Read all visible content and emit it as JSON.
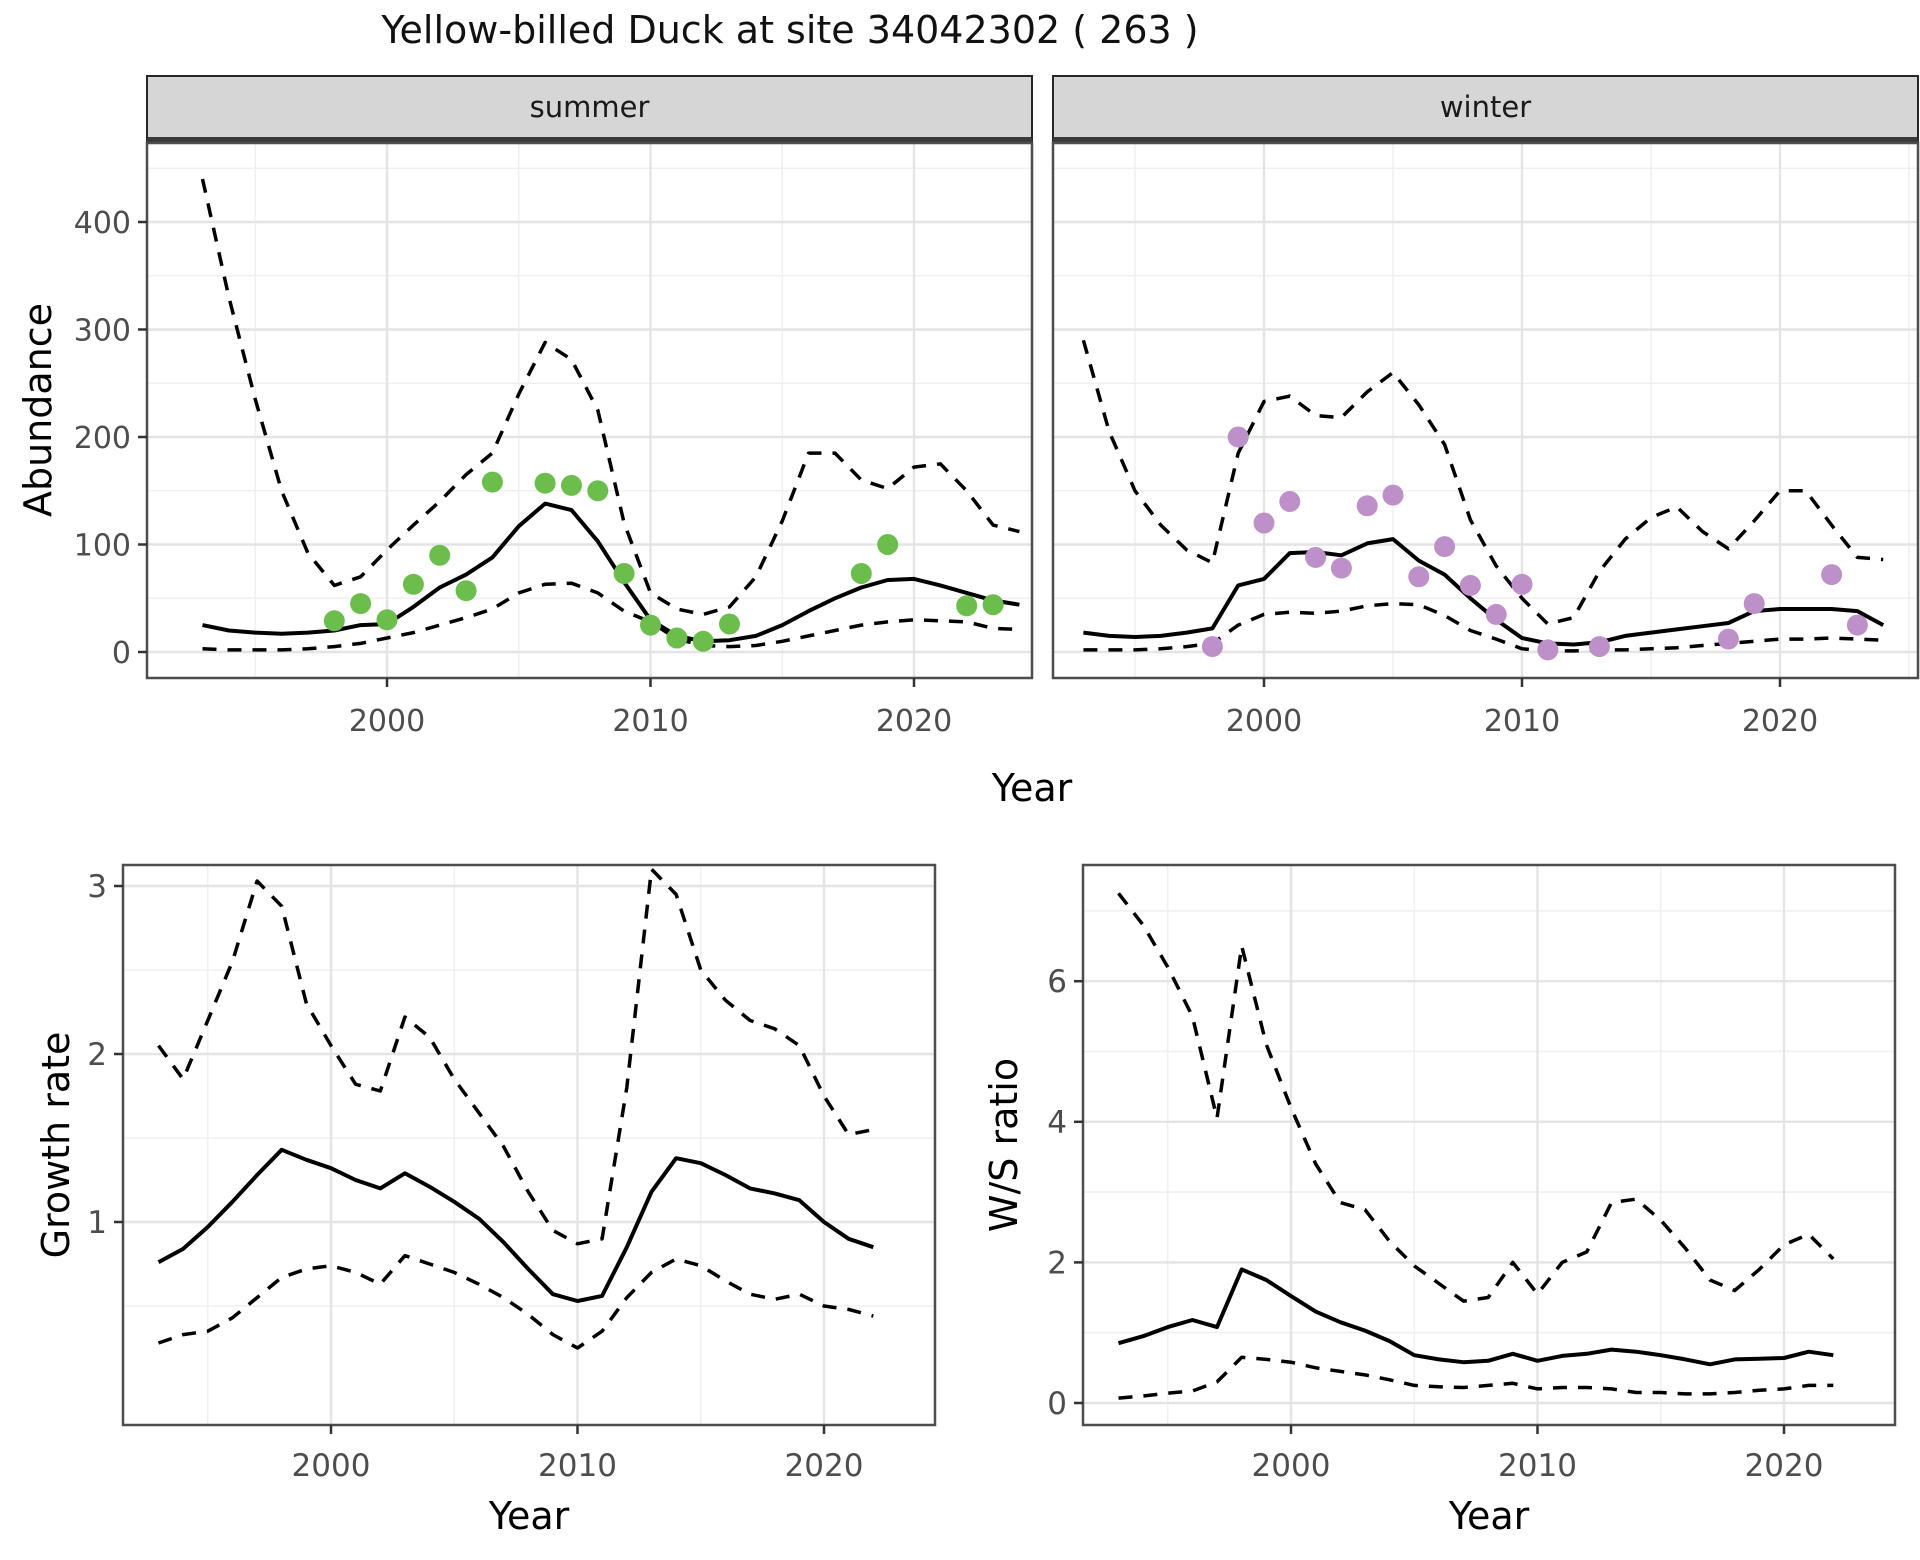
{
  "title": "Yellow-billed Duck at site 34042302 ( 263 )",
  "xlabel": "Year",
  "colors": {
    "summer_dot": "#6CBE4C",
    "winter_dot": "#BD90C9",
    "line": "#000000",
    "grid_major": "#E4E4E4",
    "grid_minor": "#F0F0F0",
    "panel_border": "#4D4D4D",
    "strip_fill": "#D6D6D6",
    "strip_underline": "#3A3A3A",
    "tick_text": "#4D4D4D"
  },
  "chart_data": [
    {
      "type": "line",
      "panel": "abundance-summer",
      "facet_label": "summer",
      "ylabel": "Abundance",
      "xlabel": "Year",
      "yticks": [
        0,
        100,
        200,
        300,
        400
      ],
      "yminor": [
        50,
        150,
        250,
        350,
        450
      ],
      "xticks": [
        2000,
        2010,
        2020
      ],
      "xminor": [
        1995,
        2005,
        2015,
        2025
      ],
      "ylim": [
        -20,
        475
      ],
      "grid": true,
      "legend": "none",
      "years": [
        1993,
        1994,
        1995,
        1996,
        1997,
        1998,
        1999,
        2000,
        2001,
        2002,
        2003,
        2004,
        2005,
        2006,
        2007,
        2008,
        2009,
        2010,
        2011,
        2012,
        2013,
        2014,
        2015,
        2016,
        2017,
        2018,
        2019,
        2020,
        2021,
        2022,
        2023,
        2024
      ],
      "series": [
        {
          "name": "estimate",
          "style": "solid",
          "values": [
            25,
            20,
            18,
            17,
            18,
            20,
            25,
            26,
            42,
            60,
            72,
            88,
            117,
            138,
            132,
            103,
            65,
            30,
            15,
            10,
            11,
            15,
            25,
            38,
            50,
            60,
            67,
            68,
            62,
            55,
            48,
            44
          ]
        },
        {
          "name": "upper_ci",
          "style": "dashed",
          "values": [
            440,
            330,
            235,
            150,
            92,
            62,
            70,
            95,
            118,
            140,
            165,
            185,
            240,
            288,
            272,
            225,
            120,
            55,
            40,
            35,
            42,
            70,
            122,
            185,
            185,
            160,
            152,
            172,
            175,
            150,
            118,
            112
          ]
        },
        {
          "name": "lower_ci",
          "style": "dashed",
          "values": [
            3,
            2,
            2,
            2,
            3,
            5,
            8,
            13,
            18,
            25,
            32,
            40,
            55,
            63,
            64,
            55,
            38,
            28,
            12,
            6,
            5,
            6,
            10,
            15,
            20,
            25,
            28,
            30,
            29,
            28,
            22,
            21
          ]
        }
      ],
      "observations": {
        "name": "observed-counts-summer",
        "color": "#6CBE4C",
        "points": [
          [
            1998,
            29
          ],
          [
            1999,
            45
          ],
          [
            2000,
            30
          ],
          [
            2001,
            63
          ],
          [
            2002,
            90
          ],
          [
            2003,
            57
          ],
          [
            2004,
            158
          ],
          [
            2006,
            157
          ],
          [
            2007,
            155
          ],
          [
            2008,
            150
          ],
          [
            2009,
            73
          ],
          [
            2010,
            25
          ],
          [
            2011,
            13
          ],
          [
            2012,
            10
          ],
          [
            2013,
            26
          ],
          [
            2018,
            73
          ],
          [
            2019,
            100
          ],
          [
            2022,
            43
          ],
          [
            2023,
            44
          ]
        ]
      }
    },
    {
      "type": "line",
      "panel": "abundance-winter",
      "facet_label": "winter",
      "ylabel": "Abundance",
      "xlabel": "Year",
      "yticks": [
        0,
        100,
        200,
        300,
        400
      ],
      "yminor": [
        50,
        150,
        250,
        350,
        450
      ],
      "xticks": [
        2000,
        2010,
        2020
      ],
      "xminor": [
        1995,
        2005,
        2015,
        2025
      ],
      "ylim": [
        -20,
        475
      ],
      "grid": true,
      "legend": "none",
      "years": [
        1993,
        1994,
        1995,
        1996,
        1997,
        1998,
        1999,
        2000,
        2001,
        2002,
        2003,
        2004,
        2005,
        2006,
        2007,
        2008,
        2009,
        2010,
        2011,
        2012,
        2013,
        2014,
        2015,
        2016,
        2017,
        2018,
        2019,
        2020,
        2021,
        2022,
        2023,
        2024
      ],
      "series": [
        {
          "name": "estimate",
          "style": "solid",
          "values": [
            18,
            15,
            14,
            15,
            18,
            22,
            62,
            68,
            92,
            93,
            90,
            101,
            105,
            85,
            72,
            50,
            30,
            13,
            8,
            7,
            9,
            15,
            18,
            21,
            24,
            27,
            38,
            40,
            40,
            40,
            38,
            25
          ]
        },
        {
          "name": "upper_ci",
          "style": "dashed",
          "values": [
            290,
            205,
            150,
            118,
            95,
            83,
            185,
            233,
            238,
            220,
            218,
            242,
            260,
            230,
            193,
            123,
            80,
            50,
            26,
            32,
            75,
            105,
            125,
            135,
            112,
            96,
            122,
            150,
            150,
            118,
            88,
            86
          ]
        },
        {
          "name": "lower_ci",
          "style": "dashed",
          "values": [
            2,
            2,
            2,
            3,
            5,
            8,
            25,
            35,
            37,
            36,
            38,
            43,
            45,
            44,
            34,
            20,
            12,
            3,
            1,
            1,
            2,
            2,
            3,
            4,
            6,
            8,
            10,
            12,
            12,
            13,
            12,
            11
          ]
        }
      ],
      "observations": {
        "name": "observed-counts-winter",
        "color": "#BD90C9",
        "points": [
          [
            1998,
            5
          ],
          [
            1999,
            200
          ],
          [
            2000,
            120
          ],
          [
            2001,
            140
          ],
          [
            2002,
            88
          ],
          [
            2003,
            78
          ],
          [
            2004,
            136
          ],
          [
            2005,
            146
          ],
          [
            2006,
            70
          ],
          [
            2007,
            98
          ],
          [
            2008,
            62
          ],
          [
            2009,
            35
          ],
          [
            2010,
            63
          ],
          [
            2011,
            2
          ],
          [
            2013,
            5
          ],
          [
            2018,
            12
          ],
          [
            2019,
            45
          ],
          [
            2022,
            72
          ],
          [
            2023,
            25
          ]
        ]
      }
    },
    {
      "type": "line",
      "panel": "growth-rate",
      "ylabel": "Growth rate",
      "xlabel": "Year",
      "yticks": [
        1,
        2,
        3
      ],
      "yminor": [
        0.5,
        1.5,
        2.5
      ],
      "xticks": [
        2000,
        2010,
        2020
      ],
      "xminor": [
        1995,
        2005,
        2015
      ],
      "ylim": [
        0.1,
        3.25
      ],
      "grid": true,
      "legend": "none",
      "years": [
        1993,
        1994,
        1995,
        1996,
        1997,
        1998,
        1999,
        2000,
        2001,
        2002,
        2003,
        2004,
        2005,
        2006,
        2007,
        2008,
        2009,
        2010,
        2011,
        2012,
        2013,
        2014,
        2015,
        2016,
        2017,
        2018,
        2019,
        2020,
        2021,
        2022
      ],
      "series": [
        {
          "name": "estimate",
          "style": "solid",
          "values": [
            0.76,
            0.84,
            0.97,
            1.12,
            1.28,
            1.43,
            1.37,
            1.32,
            1.25,
            1.2,
            1.29,
            1.21,
            1.12,
            1.02,
            0.88,
            0.72,
            0.57,
            0.53,
            0.56,
            0.85,
            1.18,
            1.38,
            1.35,
            1.28,
            1.2,
            1.17,
            1.13,
            1.0,
            0.9,
            0.85
          ]
        },
        {
          "name": "upper_ci",
          "style": "dashed",
          "values": [
            2.05,
            1.85,
            2.2,
            2.55,
            3.03,
            2.88,
            2.3,
            2.05,
            1.82,
            1.78,
            2.22,
            2.1,
            1.85,
            1.65,
            1.45,
            1.18,
            0.95,
            0.87,
            0.9,
            1.8,
            3.1,
            2.95,
            2.5,
            2.32,
            2.2,
            2.15,
            2.05,
            1.75,
            1.52,
            1.55
          ]
        },
        {
          "name": "lower_ci",
          "style": "dashed",
          "values": [
            0.28,
            0.33,
            0.35,
            0.43,
            0.55,
            0.67,
            0.72,
            0.74,
            0.7,
            0.63,
            0.8,
            0.75,
            0.7,
            0.63,
            0.55,
            0.45,
            0.33,
            0.25,
            0.35,
            0.55,
            0.7,
            0.78,
            0.74,
            0.65,
            0.57,
            0.54,
            0.57,
            0.5,
            0.48,
            0.44
          ]
        }
      ]
    },
    {
      "type": "line",
      "panel": "ws-ratio",
      "ylabel": "W/S ratio",
      "xlabel": "Year",
      "yticks": [
        0,
        2,
        4,
        6
      ],
      "yminor": [
        1,
        3,
        5,
        7
      ],
      "xticks": [
        2000,
        2010,
        2020
      ],
      "xminor": [
        1995,
        2005,
        2015
      ],
      "ylim": [
        -0.3,
        7.7
      ],
      "grid": true,
      "legend": "none",
      "years": [
        1993,
        1994,
        1995,
        1996,
        1997,
        1998,
        1999,
        2000,
        2001,
        2002,
        2003,
        2004,
        2005,
        2006,
        2007,
        2008,
        2009,
        2010,
        2011,
        2012,
        2013,
        2014,
        2015,
        2016,
        2017,
        2018,
        2019,
        2020,
        2021,
        2022
      ],
      "series": [
        {
          "name": "estimate",
          "style": "solid",
          "values": [
            0.85,
            0.95,
            1.08,
            1.18,
            1.08,
            1.9,
            1.75,
            1.52,
            1.3,
            1.15,
            1.03,
            0.88,
            0.68,
            0.62,
            0.58,
            0.6,
            0.7,
            0.6,
            0.67,
            0.7,
            0.76,
            0.73,
            0.68,
            0.62,
            0.55,
            0.62,
            0.63,
            0.64,
            0.73,
            0.68
          ]
        },
        {
          "name": "upper_ci",
          "style": "dashed",
          "values": [
            7.25,
            6.8,
            6.2,
            5.5,
            4.05,
            6.5,
            5.1,
            4.2,
            3.4,
            2.85,
            2.75,
            2.3,
            1.95,
            1.7,
            1.45,
            1.5,
            2.0,
            1.55,
            2.0,
            2.15,
            2.85,
            2.9,
            2.6,
            2.2,
            1.75,
            1.6,
            1.9,
            2.25,
            2.4,
            2.05
          ]
        },
        {
          "name": "lower_ci",
          "style": "dashed",
          "values": [
            0.07,
            0.1,
            0.14,
            0.17,
            0.3,
            0.65,
            0.62,
            0.58,
            0.5,
            0.45,
            0.4,
            0.33,
            0.25,
            0.23,
            0.22,
            0.25,
            0.28,
            0.2,
            0.22,
            0.22,
            0.2,
            0.15,
            0.15,
            0.13,
            0.13,
            0.15,
            0.18,
            0.2,
            0.25,
            0.25
          ]
        }
      ]
    }
  ]
}
